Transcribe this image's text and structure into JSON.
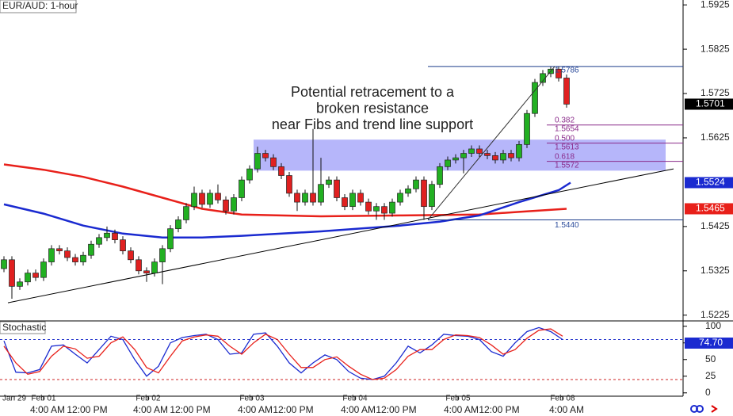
{
  "chart_data": {
    "type": "candlestick",
    "title": "EUR/AUD: 1-hour",
    "indicator_title": "Stochastic",
    "annotation": [
      "Potential retracement to a",
      "broken resistance",
      "near Fibs and trend line support"
    ],
    "ylim": [
      1.5212,
      1.5936
    ],
    "yticks": [
      1.5925,
      1.5825,
      1.5725,
      1.5625,
      1.5425,
      1.5325,
      1.5225
    ],
    "xlim": [
      -0.5,
      85.7
    ],
    "xticks": [
      {
        "value": 1.3,
        "label": "Jan 29"
      },
      {
        "value": 5,
        "label": "Feb 01"
      },
      {
        "value": 18.2,
        "label": "Feb 02"
      },
      {
        "value": 31.3,
        "label": "Feb 03"
      },
      {
        "value": 44.3,
        "label": "Feb 04"
      },
      {
        "value": 57.3,
        "label": "Feb 05"
      },
      {
        "value": 70.5,
        "label": "Feb 08"
      }
    ],
    "time_ticks": [
      {
        "value": 5.5,
        "label": "4:00 AM"
      },
      {
        "value": 10.5,
        "label": "12:00 PM"
      },
      {
        "value": 18.5,
        "label": "4:00 AM"
      },
      {
        "value": 23.5,
        "label": "12:00 PM"
      },
      {
        "value": 31.7,
        "label": "4:00 AM"
      },
      {
        "value": 36.5,
        "label": "12:00 PM"
      },
      {
        "value": 44.7,
        "label": "4:00 AM"
      },
      {
        "value": 49.5,
        "label": "12:00 PM"
      },
      {
        "value": 57.7,
        "label": "4:00 AM"
      },
      {
        "value": 62.5,
        "label": "12:00 PM"
      },
      {
        "value": 71,
        "label": "4:00 AM"
      }
    ],
    "up_color": "#22b022",
    "down_color": "#e02020",
    "open": [
      1.533,
      1.535,
      1.529,
      1.53,
      1.532,
      1.531,
      1.5345,
      1.5375,
      1.537,
      1.5355,
      1.5345,
      1.536,
      1.5385,
      1.54,
      1.541,
      1.5395,
      1.537,
      1.535,
      1.5325,
      1.532,
      1.5345,
      1.5375,
      1.542,
      1.544,
      1.547,
      1.55,
      1.5475,
      1.55,
      1.5485,
      1.546,
      1.549,
      1.553,
      1.5555,
      1.559,
      1.558,
      1.556,
      1.554,
      1.55,
      1.548,
      1.55,
      1.548,
      1.552,
      1.553,
      1.549,
      1.547,
      1.55,
      1.548,
      1.546,
      1.547,
      1.5455,
      1.548,
      1.55,
      1.551,
      1.553,
      1.547,
      1.552,
      1.556,
      1.5575,
      1.558,
      1.559,
      1.56,
      1.559,
      1.5585,
      1.5575,
      1.559,
      1.558,
      1.561,
      1.568,
      1.575,
      1.577,
      1.578,
      1.576
    ],
    "high": [
      1.5358,
      1.5358,
      1.5308,
      1.5328,
      1.5328,
      1.5353,
      1.5383,
      1.5383,
      1.5378,
      1.5363,
      1.5368,
      1.5393,
      1.5408,
      1.5425,
      1.5418,
      1.5403,
      1.5378,
      1.5358,
      1.5333,
      1.5353,
      1.5383,
      1.5428,
      1.5448,
      1.5478,
      1.5515,
      1.5508,
      1.5508,
      1.552,
      1.5493,
      1.5498,
      1.5538,
      1.5563,
      1.5605,
      1.5598,
      1.5588,
      1.5568,
      1.5548,
      1.5508,
      1.5508,
      1.5645,
      1.558,
      1.5538,
      1.5538,
      1.5498,
      1.5508,
      1.5508,
      1.5488,
      1.5478,
      1.5478,
      1.5488,
      1.5508,
      1.5518,
      1.5538,
      1.5538,
      1.5528,
      1.5568,
      1.5583,
      1.5588,
      1.5598,
      1.5608,
      1.5608,
      1.5598,
      1.5593,
      1.5598,
      1.5598,
      1.5618,
      1.5688,
      1.5758,
      1.5778,
      1.5786,
      1.5786,
      1.5768
    ],
    "low": [
      1.5322,
      1.5262,
      1.5282,
      1.5292,
      1.5302,
      1.5302,
      1.5337,
      1.5362,
      1.5347,
      1.5337,
      1.5337,
      1.5352,
      1.5377,
      1.5392,
      1.5387,
      1.5362,
      1.5342,
      1.5317,
      1.53,
      1.5312,
      1.5295,
      1.5367,
      1.5412,
      1.5432,
      1.5462,
      1.5467,
      1.5467,
      1.5477,
      1.5452,
      1.5452,
      1.5482,
      1.5522,
      1.5547,
      1.5572,
      1.5552,
      1.5532,
      1.5492,
      1.546,
      1.5472,
      1.5472,
      1.5472,
      1.5512,
      1.5482,
      1.5462,
      1.5462,
      1.5472,
      1.5452,
      1.544,
      1.544,
      1.5447,
      1.5472,
      1.5492,
      1.5502,
      1.544,
      1.5462,
      1.5512,
      1.5552,
      1.5567,
      1.5545,
      1.5582,
      1.5582,
      1.5577,
      1.5567,
      1.5567,
      1.5572,
      1.5572,
      1.5602,
      1.5672,
      1.5742,
      1.5762,
      1.5752,
      1.5693
    ],
    "close": [
      1.535,
      1.529,
      1.53,
      1.532,
      1.531,
      1.5345,
      1.5375,
      1.537,
      1.5355,
      1.5345,
      1.536,
      1.5385,
      1.54,
      1.541,
      1.5395,
      1.537,
      1.535,
      1.5325,
      1.532,
      1.5345,
      1.5375,
      1.542,
      1.544,
      1.547,
      1.55,
      1.5475,
      1.55,
      1.5485,
      1.546,
      1.549,
      1.553,
      1.5555,
      1.559,
      1.558,
      1.556,
      1.554,
      1.55,
      1.548,
      1.55,
      1.548,
      1.552,
      1.553,
      1.549,
      1.547,
      1.55,
      1.548,
      1.546,
      1.547,
      1.5455,
      1.548,
      1.55,
      1.551,
      1.553,
      1.547,
      1.552,
      1.556,
      1.5575,
      1.558,
      1.559,
      1.56,
      1.559,
      1.5585,
      1.5575,
      1.559,
      1.558,
      1.561,
      1.568,
      1.575,
      1.577,
      1.578,
      1.576,
      1.5701
    ],
    "moving_averages": [
      {
        "color": "#e8201a",
        "x": [
          0,
          5,
          10,
          15,
          20,
          25,
          30,
          40,
          50,
          60,
          65,
          71
        ],
        "values": [
          1.5565,
          1.5553,
          1.5537,
          1.5515,
          1.549,
          1.5465,
          1.5452,
          1.5448,
          1.545,
          1.5452,
          1.5458,
          1.5465
        ]
      },
      {
        "color": "#1a2ad0",
        "x": [
          0,
          5,
          10,
          15,
          20,
          25,
          30,
          40,
          50,
          55,
          60,
          65,
          70,
          71.5
        ],
        "values": [
          1.5475,
          1.5454,
          1.5427,
          1.5409,
          1.54,
          1.54,
          1.5404,
          1.5414,
          1.5427,
          1.5436,
          1.545,
          1.548,
          1.5507,
          1.5524
        ]
      }
    ],
    "price_labels": [
      {
        "value": 1.5701,
        "color": "#000000"
      },
      {
        "value": 1.5524,
        "color": "#1a2ad0"
      },
      {
        "value": 1.5465,
        "color": "#e8201a"
      }
    ],
    "trendline": {
      "x": [
        0.5,
        84.5
      ],
      "y": [
        1.5253,
        1.5555
      ]
    },
    "zone": {
      "x": [
        31.5,
        83.5
      ],
      "y": [
        1.5551,
        1.5621
      ]
    },
    "fib_high": {
      "x": 53.5,
      "value": 1.5786
    },
    "fib_low": {
      "x": 53.5,
      "value": {
        "value": 1.544,
        "label": "1.5440"
      }
    },
    "fib_levels": [
      {
        "ratio": 0.382,
        "price": 1.5654
      },
      {
        "ratio": {
          "value": 0.5,
          "label": "0.500"
        },
        "price": 1.5613
      },
      {
        "ratio": 0.618,
        "price": 1.5572
      }
    ],
    "stochastic": {
      "ylim": [
        -5,
        108
      ],
      "yticks": [
        100,
        75,
        50,
        25,
        0
      ],
      "levels": [
        {
          "value": 80,
          "color": "#2233cc"
        },
        {
          "value": 20,
          "color": "#cc2222"
        }
      ],
      "x": [
        0,
        1.5,
        3,
        4.5,
        6,
        7.5,
        9,
        10.5,
        12,
        13.5,
        15,
        16.5,
        18,
        19.5,
        21,
        22.5,
        24,
        25.5,
        27,
        28.5,
        30,
        31.5,
        33,
        34.5,
        36,
        37.5,
        39,
        40.5,
        42,
        43.5,
        45,
        46.5,
        48,
        49.5,
        51,
        52.5,
        54,
        55.5,
        57,
        58.5,
        60,
        61.5,
        63,
        64.5,
        66,
        67.5,
        69,
        70.5
      ],
      "series": [
        {
          "color": "#1a2ad0",
          "values": [
            78,
            31,
            30,
            35,
            70,
            72,
            58,
            45,
            65,
            85,
            80,
            50,
            25,
            40,
            75,
            83,
            86,
            88,
            80,
            58,
            60,
            88,
            90,
            70,
            45,
            30,
            45,
            57,
            50,
            32,
            22,
            20,
            25,
            45,
            70,
            60,
            72,
            88,
            86,
            85,
            80,
            62,
            55,
            75,
            92,
            98,
            92,
            80
          ]
        },
        {
          "color": "#e8201a",
          "values": [
            70,
            45,
            28,
            32,
            55,
            70,
            66,
            52,
            55,
            75,
            84,
            65,
            38,
            30,
            55,
            78,
            84,
            87,
            85,
            70,
            58,
            75,
            88,
            80,
            58,
            38,
            38,
            50,
            54,
            40,
            28,
            20,
            22,
            35,
            55,
            65,
            65,
            80,
            87,
            86,
            83,
            72,
            58,
            65,
            82,
            94,
            96,
            85
          ]
        }
      ],
      "last_value": {
        "value": 74.7,
        "label": "74.70"
      }
    }
  }
}
